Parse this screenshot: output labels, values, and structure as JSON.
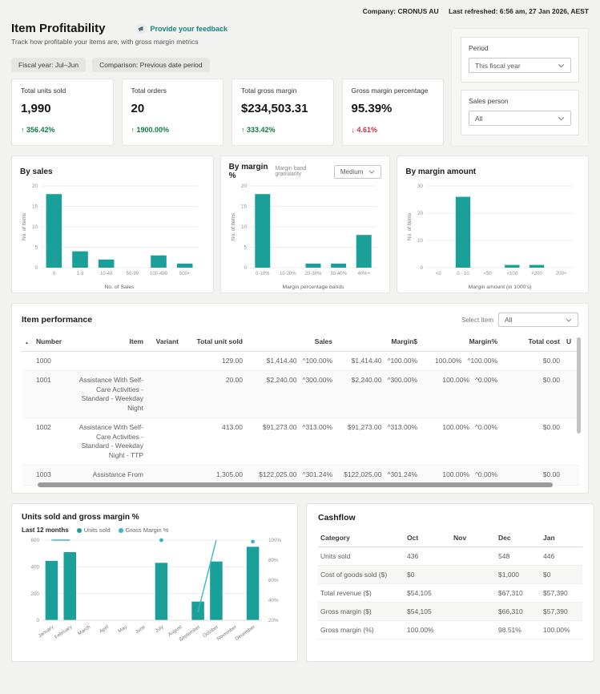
{
  "header": {
    "company": "Company: CRONUS AU",
    "last_refreshed": "Last refreshed: 6:56 am, 27 Jan 2026, AEST"
  },
  "page": {
    "title": "Item Profitability",
    "feedback": "Provide your feedback",
    "subtitle": "Track how profitable your items are, with gross margin metrics",
    "pills": [
      "Fiscal year: Jul–Jun",
      "Comparison: Previous date period"
    ]
  },
  "filters": {
    "period": {
      "label": "Period",
      "value": "This fiscal year"
    },
    "sales_person": {
      "label": "Sales person",
      "value": "All"
    }
  },
  "kpis": [
    {
      "label": "Total units sold",
      "value": "1,990",
      "change": "356.42%",
      "direction": "up"
    },
    {
      "label": "Total orders",
      "value": "20",
      "change": "1900.00%",
      "direction": "up"
    },
    {
      "label": "Total gross margin",
      "value": "$234,503.31",
      "change": "333.42%",
      "direction": "up"
    },
    {
      "label": "Gross margin percentage",
      "value": "95.39%",
      "change": "4.61%",
      "direction": "down"
    }
  ],
  "colors": {
    "accent": "#1aa098",
    "line": "#3ab7c6",
    "positive": "#107c41",
    "negative": "#c4314b"
  },
  "chart_data": [
    {
      "type": "bar",
      "title": "By sales",
      "xlabel": "No. of Sales",
      "ylabel": "No. of Items",
      "categories": [
        "0",
        "1-9",
        "10-49",
        "50-99",
        "100-499",
        "500+"
      ],
      "values": [
        18,
        4,
        2,
        0,
        3,
        1
      ],
      "ylim": [
        0,
        20
      ],
      "yticks": [
        0,
        5,
        10,
        15,
        20
      ]
    },
    {
      "type": "bar",
      "title": "By margin %",
      "control_label": "Margin band granularity",
      "control_value": "Medium",
      "xlabel": "Margin percentage bands",
      "ylabel": "No. of Items",
      "categories": [
        "0-10%",
        "10-20%",
        "20-30%",
        "30-40%",
        "40%+"
      ],
      "values": [
        18,
        0,
        1,
        1,
        8
      ],
      "ylim": [
        0,
        20
      ],
      "yticks": [
        0,
        5,
        10,
        15,
        20
      ]
    },
    {
      "type": "bar",
      "title": "By margin amount",
      "xlabel": "Margin amount (in 1000's)",
      "ylabel": "No. of Items",
      "categories": [
        "<0",
        "0 - 10",
        "<50",
        "<100",
        "<200",
        "200+"
      ],
      "values": [
        0,
        26,
        0,
        1,
        1,
        0
      ],
      "ylim": [
        0,
        30
      ],
      "yticks": [
        0,
        10,
        20,
        30
      ]
    },
    {
      "type": "combo",
      "title": "Units sold and gross margin %",
      "subtitle": "Last 12 months",
      "legend": [
        "Units sold",
        "Gross Margin %"
      ],
      "categories": [
        "January",
        "February",
        "March",
        "April",
        "May",
        "June",
        "July",
        "August",
        "September",
        "October",
        "November",
        "December"
      ],
      "series": [
        {
          "name": "Units sold",
          "type": "bar",
          "values": [
            445,
            510,
            0,
            0,
            0,
            0,
            430,
            0,
            140,
            440,
            0,
            550
          ]
        },
        {
          "name": "Gross Margin %",
          "type": "line",
          "values": [
            100,
            100,
            null,
            null,
            null,
            null,
            100,
            null,
            28,
            100,
            null,
            98.51
          ]
        }
      ],
      "ylim_left": [
        0,
        600
      ],
      "yticks_left": [
        0,
        200,
        400,
        600
      ],
      "ylim_right": [
        20,
        100
      ],
      "yticks_right": [
        "20%",
        "40%",
        "60%",
        "80%",
        "100%"
      ]
    }
  ],
  "item_performance": {
    "title": "Item performance",
    "select_label": "Select Item",
    "select_value": "All",
    "sort_icon": "▲",
    "columns": [
      "Number",
      "Item",
      "Variant",
      "Total unit sold",
      "Sales",
      "Margin$",
      "Margin%",
      "Total cost",
      "U"
    ],
    "rows": [
      {
        "number": "1000",
        "item": "",
        "variant": "",
        "total_unit_sold": "129.00",
        "sales": "$1,414.40",
        "sales_change": "^100.00%",
        "margin": "$1,414.40",
        "margin_change": "^100.00%",
        "margin_pct": "100.00%",
        "margin_pct_change": "^100.00%",
        "total_cost": "$0.00"
      },
      {
        "number": "1001",
        "item": "Assistance With Self-Care Activities - Standard - Weekday Night",
        "variant": "",
        "total_unit_sold": "20.00",
        "sales": "$2,240.00",
        "sales_change": "^300.00%",
        "margin": "$2,240.00",
        "margin_change": "^300.00%",
        "margin_pct": "100.00%",
        "margin_pct_change": "^0.00%",
        "total_cost": "$0.00"
      },
      {
        "number": "1002",
        "item": "Assistance With Self-Care Activities - Standard - Weekday Night - TTP",
        "variant": "",
        "total_unit_sold": "413.00",
        "sales": "$91,273.00",
        "sales_change": "^313.00%",
        "margin": "$91,273.00",
        "margin_change": "^313.00%",
        "margin_pct": "100.00%",
        "margin_pct_change": "^0.00%",
        "total_cost": "$0.00"
      },
      {
        "number": "1003",
        "item": "Assistance From",
        "variant": "",
        "total_unit_sold": "1,305.00",
        "sales": "$122,025.00",
        "sales_change": "^301.24%",
        "margin": "$122,025.00",
        "margin_change": "^301.24%",
        "margin_pct": "100.00%",
        "margin_pct_change": "^0.00%",
        "total_cost": "$0.00"
      }
    ]
  },
  "cashflow": {
    "title": "Cashflow",
    "columns": [
      "Category",
      "Oct",
      "Nov",
      "Dec",
      "Jan"
    ],
    "rows": [
      [
        "Units sold",
        "436",
        "",
        "548",
        "446"
      ],
      [
        "Cost of goods sold ($)",
        "$0",
        "",
        "$1,000",
        "$0"
      ],
      [
        "Total revenue ($)",
        "$54,105",
        "",
        "$67,310",
        "$57,390"
      ],
      [
        "Gross margin ($)",
        "$54,105",
        "",
        "$66,310",
        "$57,390"
      ],
      [
        "Gross margin (%)",
        "100.00%",
        "",
        "98.51%",
        "100.00%"
      ]
    ]
  }
}
